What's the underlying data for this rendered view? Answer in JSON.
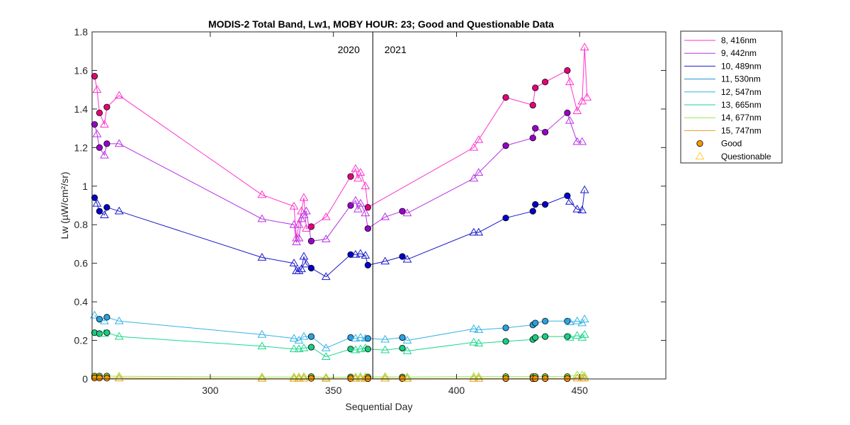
{
  "chart_data": {
    "type": "line",
    "title": "MODIS-2 Total Band,  Lw1, MOBY HOUR: 23;  Good and Questionable Data",
    "xlabel": "Sequential Day",
    "ylabel": "Lw (µW/cm²/sr)",
    "xlim": [
      252,
      485
    ],
    "ylim": [
      0,
      1.8
    ],
    "xticks": [
      300,
      350,
      400,
      450
    ],
    "yticks": [
      0,
      0.2,
      0.4,
      0.6,
      0.8,
      1.0,
      1.2,
      1.4,
      1.6,
      1.8
    ],
    "ytick_labels": [
      "0",
      "0.2",
      "0.4",
      "0.6",
      "0.8",
      "1",
      "1.2",
      "1.4",
      "1.6",
      "1.8"
    ],
    "xtick_labels": [
      "300",
      "350",
      "400",
      "450"
    ],
    "grid": false,
    "legend_position": "outside-right",
    "year_divider": {
      "x": 366,
      "left_label": "2020",
      "right_label": "2021"
    },
    "marker_legend": {
      "good": "Good",
      "questionable": "Questionable"
    },
    "series": [
      {
        "name": "8, 416nm",
        "color": "#ff33cc",
        "fill": "#e6007a",
        "points": [
          [
            253,
            1.57,
            "g"
          ],
          [
            254,
            1.5,
            "q"
          ],
          [
            255,
            1.38,
            "g"
          ],
          [
            257,
            1.32,
            "q"
          ],
          [
            258,
            1.41,
            "g"
          ],
          [
            263,
            1.47,
            "q"
          ],
          [
            321,
            0.955,
            "q"
          ],
          [
            334,
            0.895,
            "q"
          ],
          [
            335,
            0.73,
            "q"
          ],
          [
            336,
            0.8,
            "q"
          ],
          [
            337,
            0.87,
            "q"
          ],
          [
            338,
            0.94,
            "q"
          ],
          [
            339,
            0.78,
            "q"
          ],
          [
            341,
            0.79,
            "g"
          ],
          [
            347,
            0.84,
            "q"
          ],
          [
            357,
            1.05,
            "g"
          ],
          [
            359,
            1.09,
            "q"
          ],
          [
            360,
            1.04,
            "q"
          ],
          [
            361,
            1.07,
            "q"
          ],
          [
            363,
            1.0,
            "q"
          ],
          [
            364,
            0.89,
            "g"
          ],
          [
            407,
            1.2,
            "q"
          ],
          [
            409,
            1.24,
            "q"
          ],
          [
            420,
            1.46,
            "g"
          ],
          [
            431,
            1.42,
            "g"
          ],
          [
            432,
            1.51,
            "g"
          ],
          [
            436,
            1.54,
            "g"
          ],
          [
            445,
            1.6,
            "g"
          ],
          [
            446,
            1.54,
            "q"
          ],
          [
            449,
            1.39,
            "q"
          ],
          [
            451,
            1.44,
            "q"
          ],
          [
            452,
            1.72,
            "q"
          ],
          [
            453,
            1.46,
            "q"
          ]
        ]
      },
      {
        "name": "9, 442nm",
        "color": "#b833e6",
        "fill": "#9900cc",
        "points": [
          [
            253,
            1.32,
            "g"
          ],
          [
            254,
            1.27,
            "q"
          ],
          [
            255,
            1.2,
            "g"
          ],
          [
            257,
            1.16,
            "q"
          ],
          [
            258,
            1.22,
            "g"
          ],
          [
            263,
            1.22,
            "q"
          ],
          [
            321,
            0.83,
            "q"
          ],
          [
            334,
            0.8,
            "q"
          ],
          [
            335,
            0.71,
            "q"
          ],
          [
            336,
            0.73,
            "q"
          ],
          [
            337,
            0.83,
            "q"
          ],
          [
            338,
            0.85,
            "q"
          ],
          [
            339,
            0.87,
            "q"
          ],
          [
            341,
            0.715,
            "g"
          ],
          [
            347,
            0.725,
            "q"
          ],
          [
            357,
            0.9,
            "g"
          ],
          [
            359,
            0.925,
            "q"
          ],
          [
            360,
            0.88,
            "q"
          ],
          [
            361,
            0.91,
            "q"
          ],
          [
            363,
            0.86,
            "q"
          ],
          [
            364,
            0.78,
            "g"
          ],
          [
            371,
            0.84,
            "q"
          ],
          [
            378,
            0.87,
            "g"
          ],
          [
            380,
            0.86,
            "q"
          ],
          [
            407,
            1.04,
            "q"
          ],
          [
            409,
            1.07,
            "q"
          ],
          [
            420,
            1.21,
            "g"
          ],
          [
            431,
            1.25,
            "g"
          ],
          [
            432,
            1.3,
            "g"
          ],
          [
            436,
            1.28,
            "g"
          ],
          [
            445,
            1.38,
            "g"
          ],
          [
            446,
            1.34,
            "q"
          ],
          [
            449,
            1.23,
            "q"
          ],
          [
            451,
            1.23,
            "q"
          ]
        ]
      },
      {
        "name": "10, 489nm",
        "color": "#1a1acc",
        "fill": "#0000cc",
        "points": [
          [
            253,
            0.94,
            "g"
          ],
          [
            254,
            0.91,
            "q"
          ],
          [
            255,
            0.87,
            "g"
          ],
          [
            257,
            0.85,
            "q"
          ],
          [
            258,
            0.89,
            "g"
          ],
          [
            263,
            0.87,
            "q"
          ],
          [
            321,
            0.63,
            "q"
          ],
          [
            334,
            0.6,
            "q"
          ],
          [
            335,
            0.56,
            "q"
          ],
          [
            336,
            0.56,
            "q"
          ],
          [
            337,
            0.57,
            "q"
          ],
          [
            338,
            0.635,
            "q"
          ],
          [
            339,
            0.595,
            "q"
          ],
          [
            341,
            0.575,
            "g"
          ],
          [
            347,
            0.53,
            "q"
          ],
          [
            357,
            0.645,
            "g"
          ],
          [
            359,
            0.645,
            "q"
          ],
          [
            361,
            0.65,
            "q"
          ],
          [
            363,
            0.64,
            "q"
          ],
          [
            364,
            0.59,
            "g"
          ],
          [
            371,
            0.61,
            "q"
          ],
          [
            378,
            0.635,
            "g"
          ],
          [
            380,
            0.62,
            "q"
          ],
          [
            407,
            0.76,
            "q"
          ],
          [
            409,
            0.76,
            "q"
          ],
          [
            420,
            0.835,
            "g"
          ],
          [
            431,
            0.87,
            "g"
          ],
          [
            432,
            0.905,
            "g"
          ],
          [
            436,
            0.905,
            "g"
          ],
          [
            445,
            0.95,
            "g"
          ],
          [
            446,
            0.92,
            "q"
          ],
          [
            449,
            0.88,
            "q"
          ],
          [
            451,
            0.875,
            "q"
          ],
          [
            452,
            0.98,
            "q"
          ]
        ]
      },
      {
        "name": "11, 530nm",
        "color": "#1a99cc",
        "fill": "#1a8fcc",
        "points": []
      },
      {
        "name": "12, 547nm",
        "color": "#33b3e6",
        "fill": "#2aa0e0",
        "points": [
          [
            253,
            0.33,
            "q"
          ],
          [
            255,
            0.31,
            "g"
          ],
          [
            257,
            0.3,
            "q"
          ],
          [
            258,
            0.32,
            "g"
          ],
          [
            263,
            0.3,
            "q"
          ],
          [
            321,
            0.23,
            "q"
          ],
          [
            334,
            0.21,
            "q"
          ],
          [
            336,
            0.2,
            "q"
          ],
          [
            338,
            0.22,
            "q"
          ],
          [
            341,
            0.22,
            "g"
          ],
          [
            347,
            0.16,
            "q"
          ],
          [
            357,
            0.215,
            "g"
          ],
          [
            359,
            0.21,
            "q"
          ],
          [
            361,
            0.215,
            "q"
          ],
          [
            363,
            0.21,
            "q"
          ],
          [
            364,
            0.21,
            "g"
          ],
          [
            371,
            0.205,
            "q"
          ],
          [
            378,
            0.215,
            "g"
          ],
          [
            380,
            0.2,
            "q"
          ],
          [
            407,
            0.26,
            "q"
          ],
          [
            409,
            0.255,
            "q"
          ],
          [
            420,
            0.265,
            "g"
          ],
          [
            431,
            0.28,
            "g"
          ],
          [
            432,
            0.29,
            "g"
          ],
          [
            436,
            0.3,
            "g"
          ],
          [
            445,
            0.3,
            "g"
          ],
          [
            446,
            0.295,
            "q"
          ],
          [
            449,
            0.3,
            "q"
          ],
          [
            451,
            0.29,
            "q"
          ],
          [
            452,
            0.31,
            "q"
          ]
        ]
      },
      {
        "name": "13, 665nm",
        "color": "#1ad98c",
        "fill": "#1acc80",
        "points": [
          [
            253,
            0.24,
            "g"
          ],
          [
            255,
            0.235,
            "g"
          ],
          [
            257,
            0.235,
            "q"
          ],
          [
            258,
            0.24,
            "g"
          ],
          [
            263,
            0.22,
            "q"
          ],
          [
            321,
            0.17,
            "q"
          ],
          [
            334,
            0.155,
            "q"
          ],
          [
            336,
            0.155,
            "q"
          ],
          [
            338,
            0.16,
            "q"
          ],
          [
            341,
            0.165,
            "g"
          ],
          [
            347,
            0.115,
            "q"
          ],
          [
            357,
            0.155,
            "g"
          ],
          [
            359,
            0.15,
            "q"
          ],
          [
            361,
            0.155,
            "q"
          ],
          [
            363,
            0.16,
            "q"
          ],
          [
            364,
            0.155,
            "g"
          ],
          [
            371,
            0.15,
            "q"
          ],
          [
            378,
            0.16,
            "g"
          ],
          [
            380,
            0.145,
            "q"
          ],
          [
            407,
            0.19,
            "q"
          ],
          [
            409,
            0.185,
            "q"
          ],
          [
            420,
            0.195,
            "g"
          ],
          [
            431,
            0.205,
            "g"
          ],
          [
            432,
            0.215,
            "g"
          ],
          [
            436,
            0.22,
            "g"
          ],
          [
            445,
            0.22,
            "g"
          ],
          [
            446,
            0.215,
            "q"
          ],
          [
            449,
            0.225,
            "q"
          ],
          [
            451,
            0.215,
            "q"
          ],
          [
            452,
            0.23,
            "q"
          ]
        ]
      },
      {
        "name": "14, 677nm",
        "color": "#99e64d",
        "fill": "#80cc33",
        "points": [
          [
            253,
            0.015,
            "g"
          ],
          [
            255,
            0.015,
            "g"
          ],
          [
            258,
            0.015,
            "g"
          ],
          [
            263,
            0.014,
            "q"
          ],
          [
            321,
            0.01,
            "q"
          ],
          [
            334,
            0.01,
            "q"
          ],
          [
            336,
            0.01,
            "q"
          ],
          [
            338,
            0.012,
            "q"
          ],
          [
            341,
            0.012,
            "g"
          ],
          [
            347,
            0.008,
            "q"
          ],
          [
            357,
            0.01,
            "g"
          ],
          [
            359,
            0.01,
            "q"
          ],
          [
            361,
            0.012,
            "q"
          ],
          [
            363,
            0.01,
            "q"
          ],
          [
            364,
            0.01,
            "g"
          ],
          [
            371,
            0.012,
            "q"
          ],
          [
            378,
            0.01,
            "g"
          ],
          [
            380,
            0.01,
            "q"
          ],
          [
            407,
            0.012,
            "q"
          ],
          [
            409,
            0.012,
            "q"
          ],
          [
            420,
            0.012,
            "g"
          ],
          [
            431,
            0.012,
            "g"
          ],
          [
            432,
            0.012,
            "g"
          ],
          [
            436,
            0.012,
            "g"
          ],
          [
            445,
            0.012,
            "g"
          ],
          [
            449,
            0.02,
            "q"
          ],
          [
            451,
            0.02,
            "q"
          ],
          [
            452,
            0.015,
            "q"
          ]
        ]
      },
      {
        "name": "15, 747nm",
        "color": "#e6a01a",
        "fill": "#ff9900",
        "points": [
          [
            253,
            0.005,
            "g"
          ],
          [
            255,
            0.005,
            "g"
          ],
          [
            258,
            0.004,
            "g"
          ],
          [
            263,
            0.004,
            "q"
          ],
          [
            321,
            0.002,
            "q"
          ],
          [
            334,
            0.002,
            "q"
          ],
          [
            336,
            0.002,
            "q"
          ],
          [
            338,
            0.003,
            "q"
          ],
          [
            341,
            0.003,
            "g"
          ],
          [
            347,
            0.002,
            "q"
          ],
          [
            357,
            0.002,
            "g"
          ],
          [
            359,
            0.002,
            "q"
          ],
          [
            361,
            0.003,
            "q"
          ],
          [
            363,
            0.002,
            "q"
          ],
          [
            364,
            0.002,
            "g"
          ],
          [
            371,
            0.003,
            "q"
          ],
          [
            378,
            0.002,
            "g"
          ],
          [
            380,
            0.002,
            "q"
          ],
          [
            407,
            0.002,
            "q"
          ],
          [
            409,
            0.002,
            "q"
          ],
          [
            420,
            0.002,
            "g"
          ],
          [
            431,
            0.002,
            "g"
          ],
          [
            432,
            0.002,
            "g"
          ],
          [
            436,
            0.002,
            "g"
          ],
          [
            445,
            0.002,
            "g"
          ],
          [
            449,
            0.004,
            "q"
          ],
          [
            451,
            0.004,
            "q"
          ],
          [
            452,
            0.004,
            "q"
          ]
        ]
      }
    ]
  }
}
